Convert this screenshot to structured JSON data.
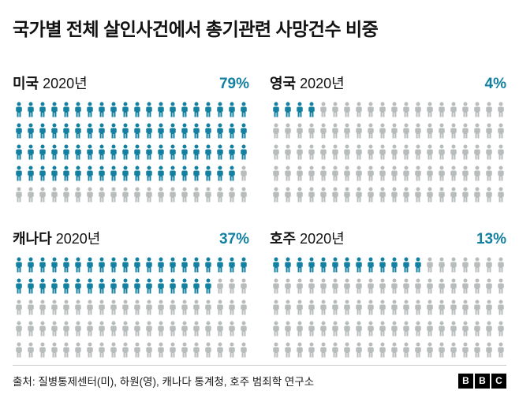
{
  "title": "국가별 전체 살인사건에서 총기관련 사망건수 비중",
  "source": "출처: 질병통제센터(미), 하원(영), 캐나다 통계청, 호주 범죄학 연구소",
  "logo_letters": [
    "B",
    "B",
    "C"
  ],
  "colors": {
    "filled": "#1380A1",
    "empty": "#b8bcbd"
  },
  "chart_data": {
    "type": "pictogram",
    "title": "국가별 전체 살인사건에서 총기관련 사망건수 비중",
    "unit_total": 100,
    "icons_per_row": 20,
    "rows_per_panel": 5,
    "legend_position": "none",
    "panels": [
      {
        "country": "미국",
        "year": "2020년",
        "value": 79,
        "label": "79%"
      },
      {
        "country": "영국",
        "year": "2020년",
        "value": 4,
        "label": "4%"
      },
      {
        "country": "캐나다",
        "year": "2020년",
        "value": 37,
        "label": "37%"
      },
      {
        "country": "호주",
        "year": "2020년",
        "value": 13,
        "label": "13%"
      }
    ]
  }
}
